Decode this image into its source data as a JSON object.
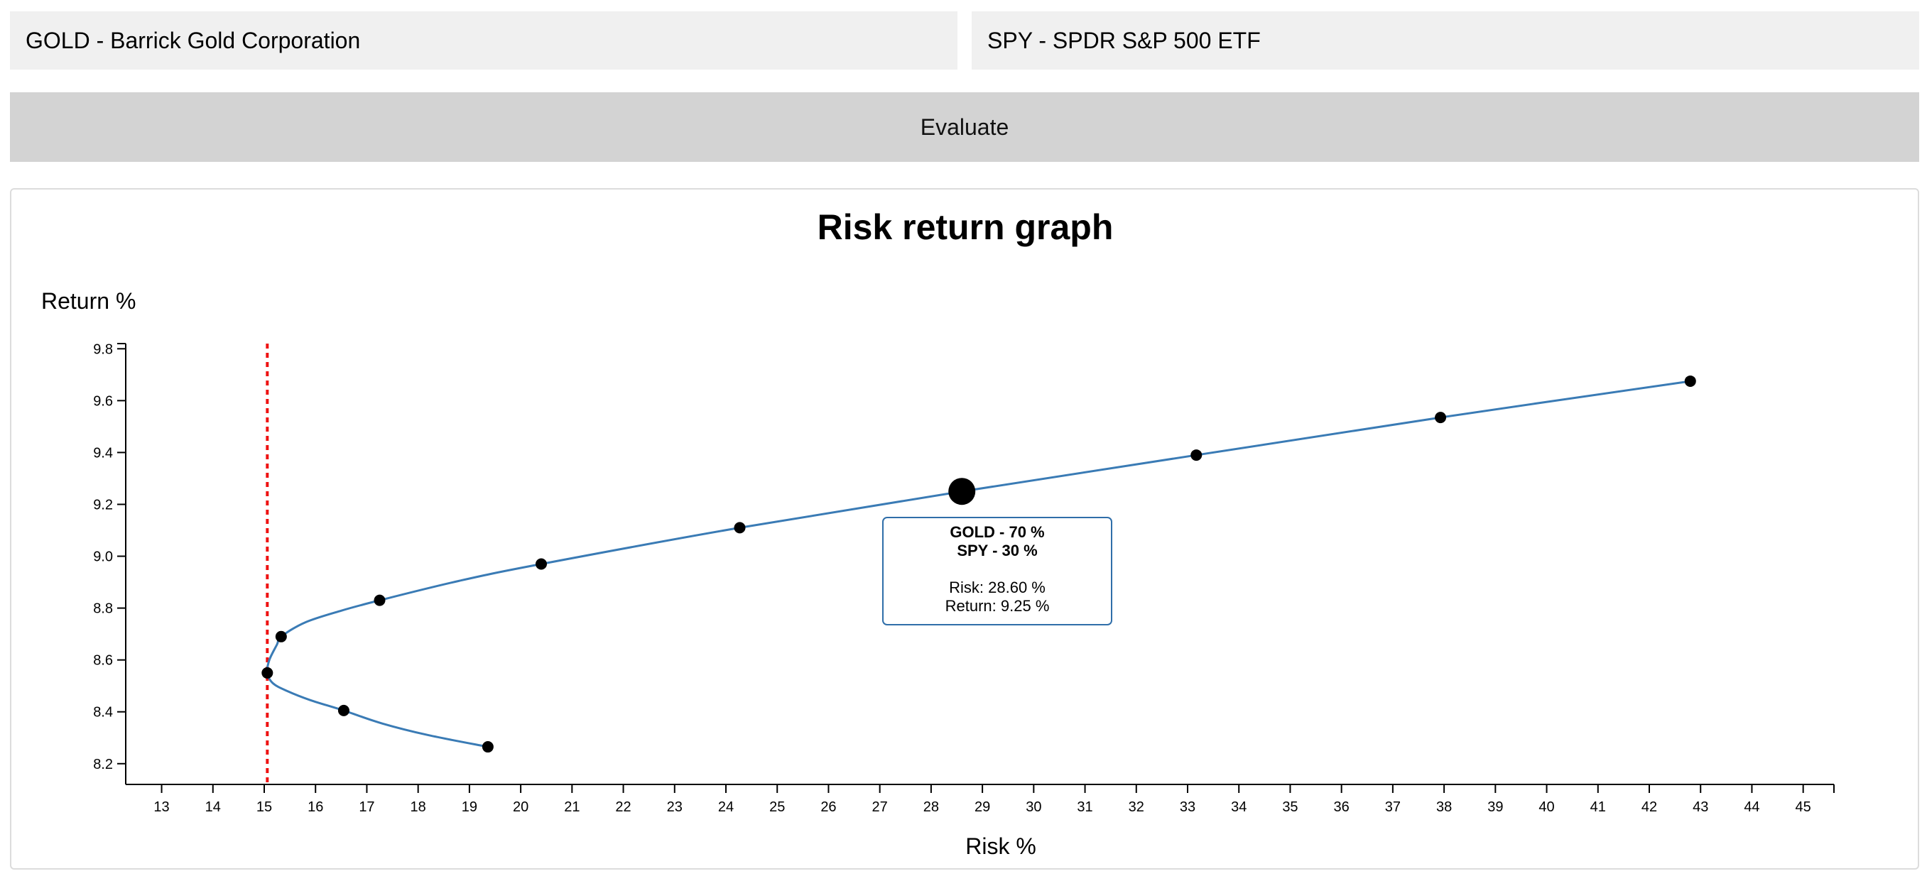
{
  "asset_a": {
    "selected": "GOLD - Barrick Gold Corporation"
  },
  "asset_b": {
    "selected": "SPY - SPDR S&P 500 ETF"
  },
  "evaluate_label": "Evaluate",
  "colors": {
    "curve": "#3a7bb5",
    "min_risk_line": "#ee1111",
    "point": "#000000",
    "tooltip_border": "#2f6ea9",
    "axis": "#000000"
  },
  "chart_data": {
    "type": "line",
    "title": "Risk return graph",
    "xlabel": "Risk %",
    "ylabel": "Return %",
    "xlim": [
      12.3,
      45.6
    ],
    "ylim": [
      8.12,
      9.82
    ],
    "x_ticks": [
      13,
      14,
      15,
      16,
      17,
      18,
      19,
      20,
      21,
      22,
      23,
      24,
      25,
      26,
      27,
      28,
      29,
      30,
      31,
      32,
      33,
      34,
      35,
      36,
      37,
      38,
      39,
      40,
      41,
      42,
      43,
      44,
      45
    ],
    "y_ticks": [
      "8.2",
      "8.4",
      "8.6",
      "8.8",
      "9.0",
      "9.2",
      "9.4",
      "9.6",
      "9.8"
    ],
    "curve": [
      {
        "x": 19.36,
        "y": 8.265
      },
      {
        "x": 18.2,
        "y": 8.31
      },
      {
        "x": 17.3,
        "y": 8.355
      },
      {
        "x": 16.55,
        "y": 8.405
      },
      {
        "x": 15.9,
        "y": 8.445
      },
      {
        "x": 15.45,
        "y": 8.48
      },
      {
        "x": 15.17,
        "y": 8.51
      },
      {
        "x": 15.06,
        "y": 8.55
      },
      {
        "x": 15.1,
        "y": 8.6
      },
      {
        "x": 15.25,
        "y": 8.66
      },
      {
        "x": 15.33,
        "y": 8.69
      },
      {
        "x": 15.8,
        "y": 8.745
      },
      {
        "x": 16.5,
        "y": 8.79
      },
      {
        "x": 17.25,
        "y": 8.83
      },
      {
        "x": 18.8,
        "y": 8.905
      },
      {
        "x": 20.4,
        "y": 8.97
      },
      {
        "x": 24.27,
        "y": 9.11
      },
      {
        "x": 28.6,
        "y": 9.25
      },
      {
        "x": 33.17,
        "y": 9.39
      },
      {
        "x": 37.93,
        "y": 9.535
      },
      {
        "x": 42.8,
        "y": 9.675
      }
    ],
    "points": [
      {
        "x": 42.8,
        "y": 9.675
      },
      {
        "x": 37.93,
        "y": 9.535
      },
      {
        "x": 33.17,
        "y": 9.39
      },
      {
        "x": 24.27,
        "y": 9.11
      },
      {
        "x": 20.4,
        "y": 8.97
      },
      {
        "x": 17.25,
        "y": 8.83
      },
      {
        "x": 15.33,
        "y": 8.69
      },
      {
        "x": 15.06,
        "y": 8.55
      },
      {
        "x": 16.55,
        "y": 8.405
      },
      {
        "x": 19.36,
        "y": 8.265
      }
    ],
    "selected_point": {
      "x": 28.6,
      "y": 9.25
    },
    "min_risk_line_x": 15.06,
    "tooltip": {
      "line1": "GOLD - 70 %",
      "line2": "SPY - 30 %",
      "risk": "Risk: 28.60 %",
      "return": "Return: 9.25 %"
    },
    "grid": false
  }
}
